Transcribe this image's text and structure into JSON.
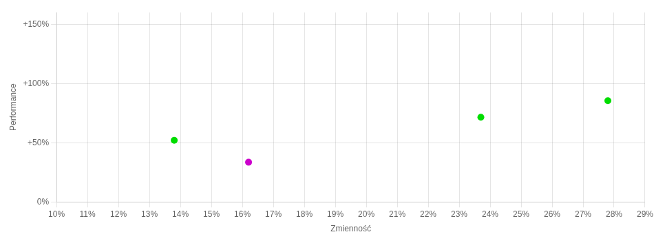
{
  "chart_data": {
    "type": "scatter",
    "xlabel": "Zmienność",
    "ylabel": "Performance",
    "series": [
      {
        "x": [
          0.138,
          0.162,
          0.237,
          0.278
        ],
        "values": [
          0.52,
          0.335,
          0.715,
          0.855
        ],
        "colors": [
          "#00dd00",
          "#cc00cc",
          "#00dd00",
          "#00dd00"
        ]
      }
    ],
    "xlim": [
      0.1,
      0.29
    ],
    "ylim": [
      0.0,
      1.6
    ],
    "xticks": [
      {
        "value": 0.1,
        "label": "10%"
      },
      {
        "value": 0.11,
        "label": "11%"
      },
      {
        "value": 0.12,
        "label": "12%"
      },
      {
        "value": 0.13,
        "label": "13%"
      },
      {
        "value": 0.14,
        "label": "14%"
      },
      {
        "value": 0.15,
        "label": "15%"
      },
      {
        "value": 0.16,
        "label": "16%"
      },
      {
        "value": 0.17,
        "label": "17%"
      },
      {
        "value": 0.18,
        "label": "18%"
      },
      {
        "value": 0.19,
        "label": "19%"
      },
      {
        "value": 0.2,
        "label": "20%"
      },
      {
        "value": 0.21,
        "label": "21%"
      },
      {
        "value": 0.22,
        "label": "22%"
      },
      {
        "value": 0.23,
        "label": "23%"
      },
      {
        "value": 0.24,
        "label": "24%"
      },
      {
        "value": 0.25,
        "label": "25%"
      },
      {
        "value": 0.26,
        "label": "26%"
      },
      {
        "value": 0.27,
        "label": "27%"
      },
      {
        "value": 0.28,
        "label": "28%"
      },
      {
        "value": 0.29,
        "label": "29%"
      }
    ],
    "yticks": [
      {
        "value": 0.0,
        "label": "0%"
      },
      {
        "value": 0.5,
        "label": "+50%"
      },
      {
        "value": 1.0,
        "label": "+100%"
      },
      {
        "value": 1.5,
        "label": "+150%"
      }
    ],
    "grid": true
  }
}
